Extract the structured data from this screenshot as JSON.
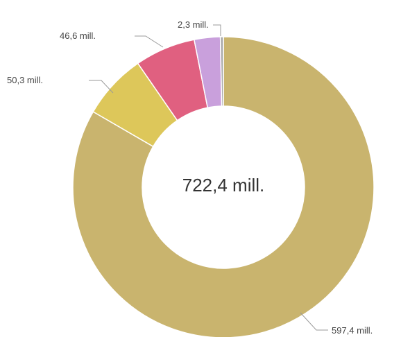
{
  "chart_data": {
    "type": "pie",
    "donut": true,
    "center_label": "722,4 mill.",
    "total": 722.4,
    "unit": "mill.",
    "slices": [
      {
        "value": 597.4,
        "label": "597,4 mill.",
        "color": "#c9b46e"
      },
      {
        "value": 50.3,
        "label": "50,3 mill.",
        "color": "#ddc75a"
      },
      {
        "value": 46.6,
        "label": "46,6 mill.",
        "color": "#e06080"
      },
      {
        "value": 20.0,
        "label": "",
        "color": "#c9a0dc"
      },
      {
        "value": 2.3,
        "label": "2,3 mill.",
        "color": "#a8a8a8"
      }
    ],
    "labels_shown": [
      "597,4 mill.",
      "50,3 mill.",
      "46,6 mill.",
      "2,3 mill."
    ]
  }
}
